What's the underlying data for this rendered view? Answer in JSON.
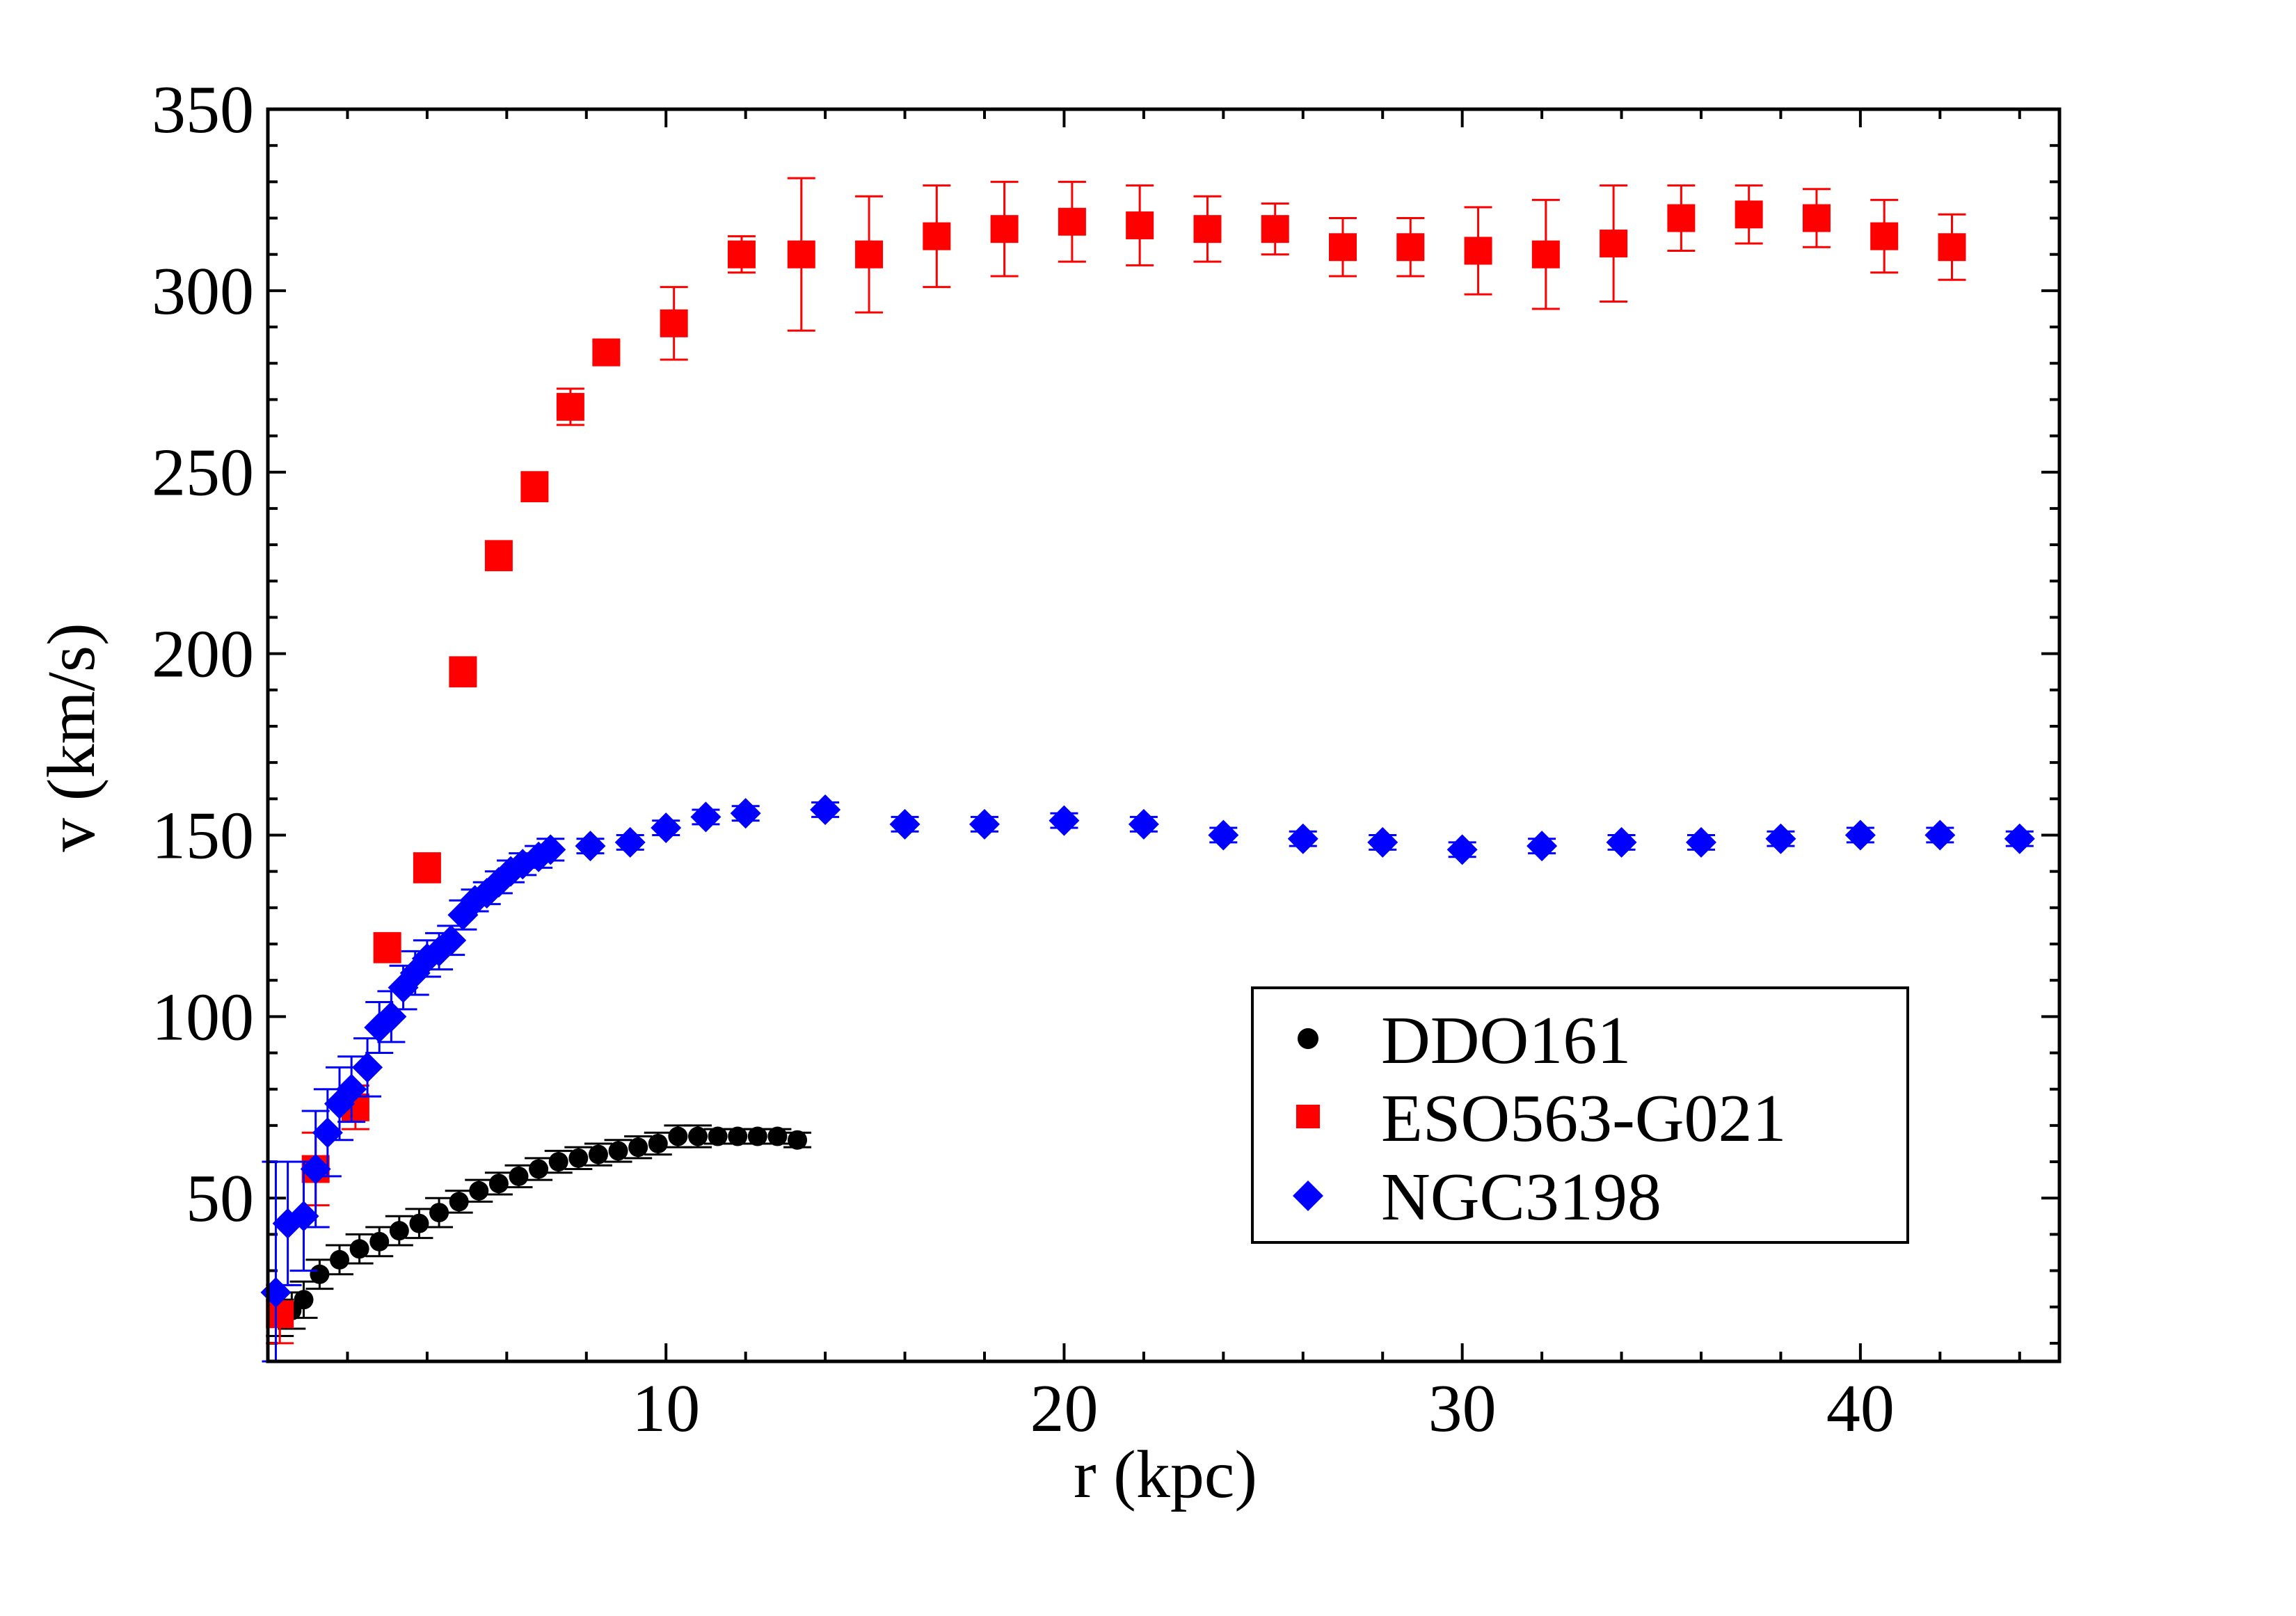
{
  "chart_data": {
    "type": "scatter",
    "title": "",
    "xlabel": "r (kpc)",
    "ylabel": "v (km/s)",
    "xlim": [
      0,
      45
    ],
    "ylim": [
      5,
      350
    ],
    "xticks": [
      10,
      20,
      30,
      40
    ],
    "yticks": [
      50,
      100,
      150,
      200,
      250,
      300,
      350
    ],
    "legend_position": "lower-right",
    "series": [
      {
        "name": "DDO161",
        "marker": "circle",
        "color": "#000000",
        "points": [
          {
            "x": 0.3,
            "y": 17,
            "err": 5
          },
          {
            "x": 0.6,
            "y": 19,
            "err": 5
          },
          {
            "x": 0.9,
            "y": 22,
            "err": 5
          },
          {
            "x": 1.3,
            "y": 29,
            "err": 4
          },
          {
            "x": 1.8,
            "y": 33,
            "err": 4
          },
          {
            "x": 2.3,
            "y": 36,
            "err": 4
          },
          {
            "x": 2.8,
            "y": 38,
            "err": 4
          },
          {
            "x": 3.3,
            "y": 41,
            "err": 4
          },
          {
            "x": 3.8,
            "y": 43,
            "err": 4
          },
          {
            "x": 4.3,
            "y": 46,
            "err": 4
          },
          {
            "x": 4.8,
            "y": 49,
            "err": 3
          },
          {
            "x": 5.3,
            "y": 52,
            "err": 3
          },
          {
            "x": 5.8,
            "y": 54,
            "err": 3
          },
          {
            "x": 6.3,
            "y": 56,
            "err": 3
          },
          {
            "x": 6.8,
            "y": 58,
            "err": 3
          },
          {
            "x": 7.3,
            "y": 60,
            "err": 3
          },
          {
            "x": 7.8,
            "y": 61,
            "err": 3
          },
          {
            "x": 8.3,
            "y": 62,
            "err": 3
          },
          {
            "x": 8.8,
            "y": 63,
            "err": 3
          },
          {
            "x": 9.3,
            "y": 64,
            "err": 3
          },
          {
            "x": 9.8,
            "y": 65,
            "err": 3
          },
          {
            "x": 10.3,
            "y": 67,
            "err": 3
          },
          {
            "x": 10.8,
            "y": 67,
            "err": 3
          },
          {
            "x": 11.3,
            "y": 67,
            "err": 2
          },
          {
            "x": 11.8,
            "y": 67,
            "err": 2
          },
          {
            "x": 12.3,
            "y": 67,
            "err": 2
          },
          {
            "x": 12.8,
            "y": 67,
            "err": 2
          },
          {
            "x": 13.3,
            "y": 66,
            "err": 2
          }
        ]
      },
      {
        "name": "ESO563-G021",
        "marker": "square",
        "color": "#ff0000",
        "points": [
          {
            "x": 0.3,
            "y": 18,
            "err": 8
          },
          {
            "x": 1.2,
            "y": 58,
            "err": 10
          },
          {
            "x": 2.2,
            "y": 75,
            "err": 6
          },
          {
            "x": 3.0,
            "y": 119,
            "err": 4
          },
          {
            "x": 4.0,
            "y": 141,
            "err": 4
          },
          {
            "x": 4.9,
            "y": 195,
            "err": 4
          },
          {
            "x": 5.8,
            "y": 227,
            "err": 4
          },
          {
            "x": 6.7,
            "y": 246,
            "err": 4
          },
          {
            "x": 7.6,
            "y": 268,
            "err": 5
          },
          {
            "x": 8.5,
            "y": 283,
            "err": 3
          },
          {
            "x": 10.2,
            "y": 291,
            "err": 10
          },
          {
            "x": 11.9,
            "y": 310,
            "err": 5
          },
          {
            "x": 13.4,
            "y": 310,
            "err": 21
          },
          {
            "x": 15.1,
            "y": 310,
            "err": 16
          },
          {
            "x": 16.8,
            "y": 315,
            "err": 14
          },
          {
            "x": 18.5,
            "y": 317,
            "err": 13
          },
          {
            "x": 20.2,
            "y": 319,
            "err": 11
          },
          {
            "x": 21.9,
            "y": 318,
            "err": 11
          },
          {
            "x": 23.6,
            "y": 317,
            "err": 9
          },
          {
            "x": 25.3,
            "y": 317,
            "err": 7
          },
          {
            "x": 27.0,
            "y": 312,
            "err": 8
          },
          {
            "x": 28.7,
            "y": 312,
            "err": 8
          },
          {
            "x": 30.4,
            "y": 311,
            "err": 12
          },
          {
            "x": 32.1,
            "y": 310,
            "err": 15
          },
          {
            "x": 33.8,
            "y": 313,
            "err": 16
          },
          {
            "x": 35.5,
            "y": 320,
            "err": 9
          },
          {
            "x": 37.2,
            "y": 321,
            "err": 8
          },
          {
            "x": 38.9,
            "y": 320,
            "err": 8
          },
          {
            "x": 40.6,
            "y": 315,
            "err": 10
          },
          {
            "x": 42.3,
            "y": 312,
            "err": 9
          }
        ]
      },
      {
        "name": "NGC3198",
        "marker": "diamond",
        "color": "#0000ff",
        "points": [
          {
            "x": 0.2,
            "y": 24,
            "err": 36
          },
          {
            "x": 0.5,
            "y": 43,
            "err": 17
          },
          {
            "x": 0.9,
            "y": 45,
            "err": 15
          },
          {
            "x": 1.2,
            "y": 58,
            "err": 16
          },
          {
            "x": 1.5,
            "y": 68,
            "err": 12
          },
          {
            "x": 1.8,
            "y": 76,
            "err": 10
          },
          {
            "x": 2.1,
            "y": 80,
            "err": 9
          },
          {
            "x": 2.5,
            "y": 86,
            "err": 8
          },
          {
            "x": 2.8,
            "y": 97,
            "err": 7
          },
          {
            "x": 3.1,
            "y": 100,
            "err": 7
          },
          {
            "x": 3.4,
            "y": 108,
            "err": 6
          },
          {
            "x": 3.7,
            "y": 112,
            "err": 6
          },
          {
            "x": 4.0,
            "y": 116,
            "err": 5
          },
          {
            "x": 4.3,
            "y": 118,
            "err": 5
          },
          {
            "x": 4.6,
            "y": 121,
            "err": 4
          },
          {
            "x": 4.9,
            "y": 128,
            "err": 4
          },
          {
            "x": 5.2,
            "y": 132,
            "err": 3
          },
          {
            "x": 5.5,
            "y": 134,
            "err": 3
          },
          {
            "x": 5.8,
            "y": 137,
            "err": 3
          },
          {
            "x": 6.1,
            "y": 140,
            "err": 3
          },
          {
            "x": 6.4,
            "y": 142,
            "err": 3
          },
          {
            "x": 6.8,
            "y": 144,
            "err": 3
          },
          {
            "x": 7.1,
            "y": 146,
            "err": 3
          },
          {
            "x": 8.1,
            "y": 147,
            "err": 2
          },
          {
            "x": 9.1,
            "y": 148,
            "err": 2
          },
          {
            "x": 10.0,
            "y": 152,
            "err": 2
          },
          {
            "x": 11.0,
            "y": 155,
            "err": 2
          },
          {
            "x": 12.0,
            "y": 156,
            "err": 2
          },
          {
            "x": 14.0,
            "y": 157,
            "err": 2
          },
          {
            "x": 16.0,
            "y": 153,
            "err": 2
          },
          {
            "x": 18.0,
            "y": 153,
            "err": 2
          },
          {
            "x": 20.0,
            "y": 154,
            "err": 2
          },
          {
            "x": 22.0,
            "y": 153,
            "err": 2
          },
          {
            "x": 24.0,
            "y": 150,
            "err": 2
          },
          {
            "x": 26.0,
            "y": 149,
            "err": 2
          },
          {
            "x": 28.0,
            "y": 148,
            "err": 2
          },
          {
            "x": 30.0,
            "y": 146,
            "err": 2
          },
          {
            "x": 32.0,
            "y": 147,
            "err": 2
          },
          {
            "x": 34.0,
            "y": 148,
            "err": 2
          },
          {
            "x": 36.0,
            "y": 148,
            "err": 2
          },
          {
            "x": 38.0,
            "y": 149,
            "err": 2
          },
          {
            "x": 40.0,
            "y": 150,
            "err": 2
          },
          {
            "x": 42.0,
            "y": 150,
            "err": 2
          },
          {
            "x": 44.0,
            "y": 149,
            "err": 2
          }
        ]
      }
    ]
  }
}
